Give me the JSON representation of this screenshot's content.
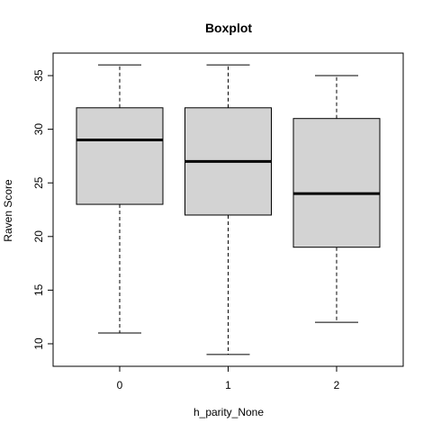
{
  "chart_data": {
    "type": "boxplot",
    "title": "Boxplot",
    "xlabel": "h_parity_None",
    "ylabel": "Raven Score",
    "categories": [
      "0",
      "1",
      "2"
    ],
    "boxes": [
      {
        "category": "0",
        "whisker_low": 11,
        "q1": 23,
        "median": 29,
        "q3": 32,
        "whisker_high": 36
      },
      {
        "category": "1",
        "whisker_low": 9,
        "q1": 22,
        "median": 27,
        "q3": 32,
        "whisker_high": 36
      },
      {
        "category": "2",
        "whisker_low": 12,
        "q1": 19,
        "median": 24,
        "q3": 31,
        "whisker_high": 35
      }
    ],
    "y_ticks": [
      10,
      15,
      20,
      25,
      30,
      35
    ],
    "ylim": [
      7.9,
      37.1
    ],
    "grid": false,
    "box_fill": "#d3d3d3",
    "line_color": "#000000"
  }
}
